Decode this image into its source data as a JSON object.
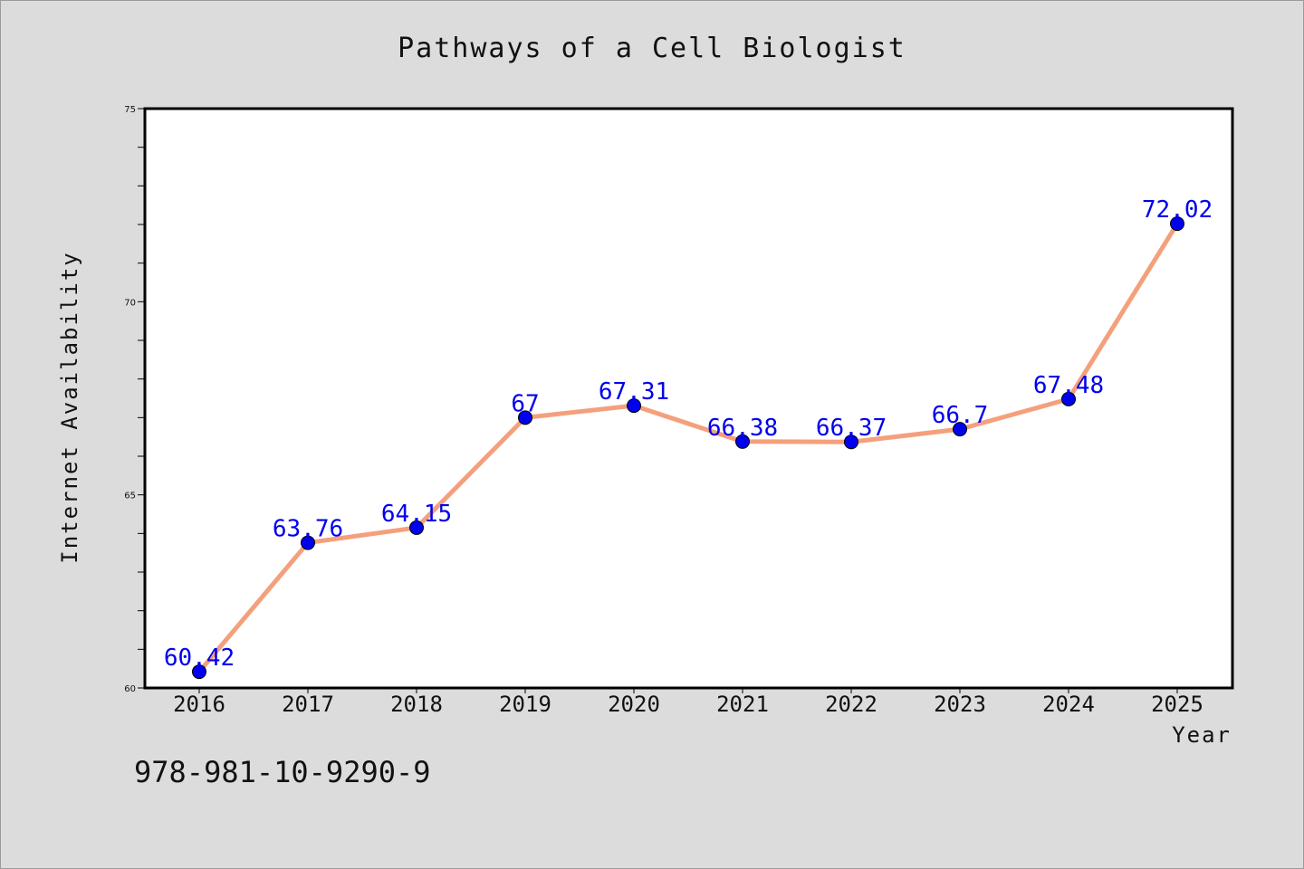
{
  "chart_data": {
    "type": "line",
    "title": "Pathways of a Cell Biologist",
    "xlabel": "Year",
    "ylabel": "Internet Availability",
    "categories": [
      "2016",
      "2017",
      "2018",
      "2019",
      "2020",
      "2021",
      "2022",
      "2023",
      "2024",
      "2025"
    ],
    "series": [
      {
        "values": [
          60.42,
          63.76,
          64.15,
          67,
          67.31,
          66.38,
          66.37,
          66.7,
          67.48,
          72.02
        ],
        "labels": [
          "60.42",
          "63.76",
          "64.15",
          "67",
          "67.31",
          "66.38",
          "66.37",
          "66.7",
          "67.48",
          "72.02"
        ],
        "line_color": "#f4a07c",
        "marker_color": "#0000ee"
      }
    ],
    "ylim": [
      60,
      75
    ],
    "yticks": [
      60,
      65,
      70,
      75
    ],
    "ytick_labels": [
      "60",
      "65",
      "70",
      "75"
    ],
    "y_minor_step": 1,
    "grid": false,
    "legend": "none",
    "plot_background": "#ffffff",
    "figure_background": "#dcdcdc"
  },
  "footer": {
    "isbn": "978-981-10-9290-9"
  }
}
